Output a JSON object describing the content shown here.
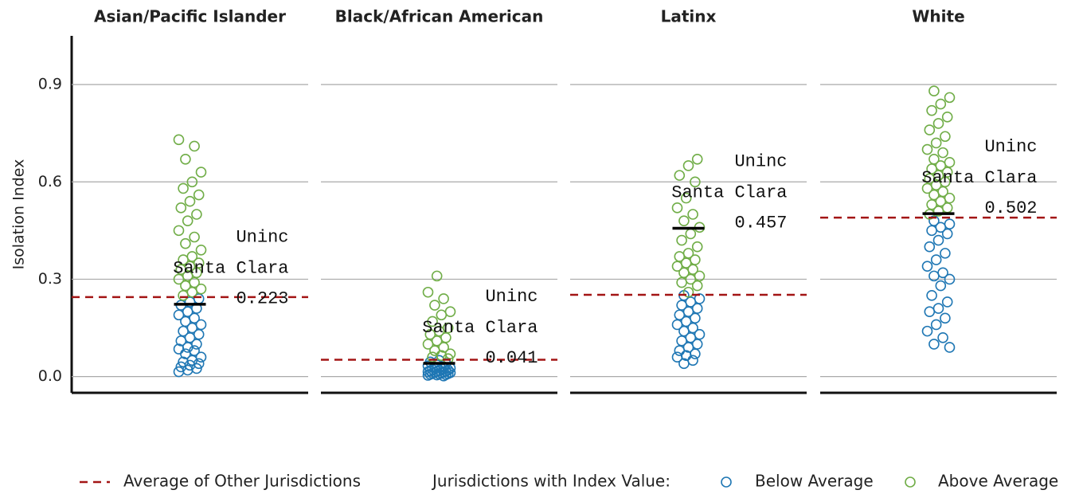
{
  "chart_data": {
    "type": "strip",
    "ylabel": "Isolation Index",
    "ylim": [
      -0.05,
      1.05
    ],
    "yticks": [
      {
        "value": 0,
        "label": "0.0"
      },
      0.3,
      0.6,
      0.9
    ],
    "grid": true,
    "average_name": "Average of Other Jurisdictions",
    "average_color": "#a31515",
    "legend_title": "Jurisdictions with Index Value:",
    "series": [
      {
        "name": "Below Average",
        "color": "#1f77b4"
      },
      {
        "name": "Above Average",
        "color": "#70ad47"
      }
    ],
    "panels": [
      {
        "title": "Asian/Pacific Islander",
        "average": 0.245,
        "highlight": {
          "lines": [
            "Uninc",
            "Santa Clara"
          ],
          "value": 0.223
        },
        "series": [
          {
            "values": [
              0.015,
              0.02,
              0.025,
              0.03,
              0.035,
              0.04,
              0.045,
              0.05,
              0.06,
              0.07,
              0.08,
              0.085,
              0.09,
              0.1,
              0.11,
              0.12,
              0.13,
              0.14,
              0.15,
              0.16,
              0.17,
              0.18,
              0.19,
              0.2,
              0.21,
              0.22,
              0.23,
              0.24
            ]
          },
          {
            "values": [
              0.25,
              0.26,
              0.27,
              0.28,
              0.29,
              0.3,
              0.31,
              0.32,
              0.33,
              0.34,
              0.35,
              0.36,
              0.37,
              0.39,
              0.41,
              0.43,
              0.45,
              0.48,
              0.5,
              0.52,
              0.54,
              0.56,
              0.58,
              0.6,
              0.63,
              0.67,
              0.71,
              0.73
            ]
          }
        ]
      },
      {
        "title": "Black/African American",
        "average": 0.052,
        "highlight": {
          "lines": [
            "Uninc",
            "Santa Clara"
          ],
          "value": 0.041
        },
        "series": [
          {
            "values": [
              0.002,
              0.004,
              0.005,
              0.006,
              0.007,
              0.008,
              0.009,
              0.01,
              0.011,
              0.012,
              0.013,
              0.014,
              0.015,
              0.016,
              0.017,
              0.018,
              0.019,
              0.02,
              0.022,
              0.024,
              0.026,
              0.028,
              0.03,
              0.033,
              0.036,
              0.04,
              0.045,
              0.05
            ]
          },
          {
            "values": [
              0.055,
              0.06,
              0.065,
              0.07,
              0.08,
              0.09,
              0.1,
              0.11,
              0.12,
              0.13,
              0.14,
              0.15,
              0.17,
              0.19,
              0.2,
              0.22,
              0.24,
              0.26,
              0.31
            ]
          }
        ]
      },
      {
        "title": "Latinx",
        "average": 0.252,
        "highlight": {
          "lines": [
            "Uninc",
            "Santa Clara"
          ],
          "value": 0.457
        },
        "series": [
          {
            "values": [
              0.04,
              0.05,
              0.06,
              0.065,
              0.07,
              0.08,
              0.09,
              0.1,
              0.11,
              0.12,
              0.13,
              0.14,
              0.15,
              0.16,
              0.17,
              0.18,
              0.19,
              0.2,
              0.21,
              0.22,
              0.23,
              0.24,
              0.25
            ]
          },
          {
            "values": [
              0.26,
              0.28,
              0.29,
              0.3,
              0.31,
              0.32,
              0.33,
              0.34,
              0.35,
              0.36,
              0.37,
              0.38,
              0.4,
              0.42,
              0.44,
              0.46,
              0.48,
              0.5,
              0.52,
              0.55,
              0.6,
              0.62,
              0.65,
              0.67
            ]
          }
        ]
      },
      {
        "title": "White",
        "average": 0.49,
        "highlight": {
          "lines": [
            "Uninc",
            "Santa Clara"
          ],
          "value": 0.502
        },
        "series": [
          {
            "values": [
              0.09,
              0.1,
              0.12,
              0.14,
              0.16,
              0.18,
              0.2,
              0.21,
              0.23,
              0.25,
              0.28,
              0.3,
              0.31,
              0.32,
              0.34,
              0.36,
              0.38,
              0.4,
              0.42,
              0.44,
              0.45,
              0.46,
              0.47,
              0.48
            ]
          },
          {
            "values": [
              0.5,
              0.51,
              0.52,
              0.53,
              0.54,
              0.55,
              0.56,
              0.57,
              0.58,
              0.59,
              0.6,
              0.61,
              0.62,
              0.63,
              0.64,
              0.65,
              0.66,
              0.67,
              0.69,
              0.7,
              0.72,
              0.74,
              0.76,
              0.78,
              0.8,
              0.82,
              0.84,
              0.86,
              0.88
            ]
          }
        ]
      }
    ]
  }
}
